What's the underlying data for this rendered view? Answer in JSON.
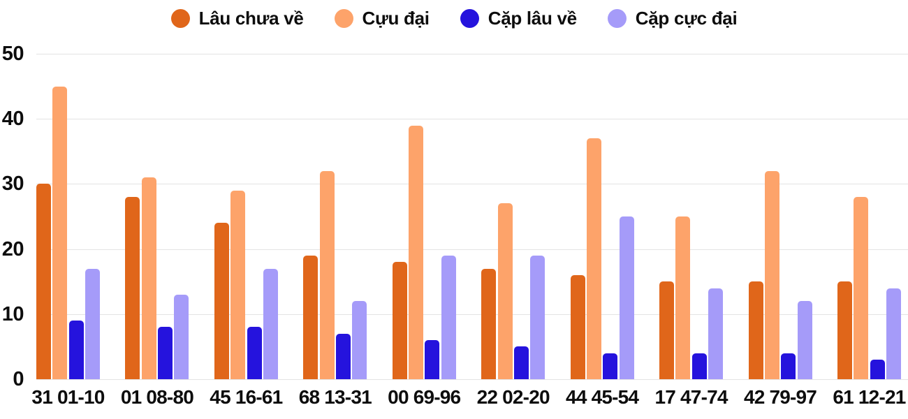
{
  "chart_data": {
    "type": "bar",
    "title": "",
    "xlabel": "",
    "ylabel": "",
    "ylim": [
      0,
      50
    ],
    "yticks": [
      0,
      10,
      20,
      30,
      40,
      50
    ],
    "grid": "horizontal",
    "legend_position": "top-center",
    "categories": [
      "31 01-10",
      "01 08-80",
      "45 16-61",
      "68 13-31",
      "00 69-96",
      "22 02-20",
      "44 45-54",
      "17 47-74",
      "42 79-97",
      "61 12-21"
    ],
    "series": [
      {
        "name": "Lâu chưa về",
        "color": "#e0661a",
        "values": [
          30,
          28,
          24,
          19,
          18,
          17,
          16,
          15,
          15,
          15
        ]
      },
      {
        "name": "Cựu đại",
        "color": "#fda36a",
        "values": [
          45,
          31,
          29,
          32,
          39,
          27,
          37,
          25,
          32,
          28
        ]
      },
      {
        "name": "Cặp lâu về",
        "color": "#2513dd",
        "values": [
          9,
          8,
          8,
          7,
          6,
          5,
          4,
          4,
          4,
          3
        ]
      },
      {
        "name": "Cặp cực đại",
        "color": "#a59bf9",
        "values": [
          17,
          13,
          17,
          12,
          19,
          19,
          25,
          14,
          12,
          14
        ]
      }
    ]
  },
  "colors": {
    "gridline": "#e3e3e3",
    "text": "#0d0d0d",
    "background": "#ffffff"
  }
}
